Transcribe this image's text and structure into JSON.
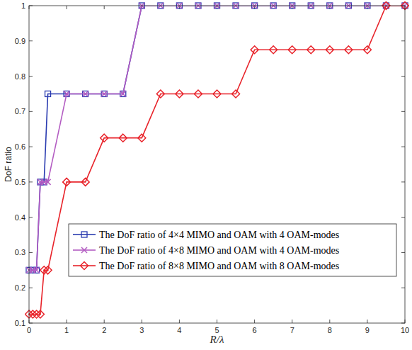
{
  "chart_data": {
    "type": "line",
    "x_label": "R/λ",
    "y_label": "DoF ratio",
    "x": [
      0,
      0.1,
      0.2,
      0.3,
      0.4,
      0.5,
      1,
      1.5,
      2,
      2.5,
      3,
      3.5,
      4,
      4.5,
      5,
      5.5,
      6,
      6.5,
      7,
      7.5,
      8,
      8.5,
      9,
      9.5,
      10
    ],
    "series": [
      {
        "name": "The DoF ratio of 4×4 MIMO and OAM with 4 OAM-modes",
        "color": "#2a3bb0",
        "marker": "square",
        "values": [
          0.25,
          0.25,
          0.25,
          0.5,
          0.5,
          0.75,
          0.75,
          0.75,
          0.75,
          0.75,
          1,
          1,
          1,
          1,
          1,
          1,
          1,
          1,
          1,
          1,
          1,
          1,
          1,
          1,
          1
        ]
      },
      {
        "name": "The DoF ratio of 4×8 MIMO and OAM with 4 OAM-modes",
        "color": "#b35cc2",
        "marker": "x",
        "values": [
          0.25,
          0.25,
          0.25,
          0.5,
          0.5,
          0.5,
          0.75,
          0.75,
          0.75,
          0.75,
          1,
          1,
          1,
          1,
          1,
          1,
          1,
          1,
          1,
          1,
          1,
          1,
          1,
          1,
          1
        ]
      },
      {
        "name": "The DoF ratio of 8×8 MIMO and OAM with 8 OAM-modes",
        "color": "#e8232a",
        "marker": "diamond",
        "values": [
          0.125,
          0.125,
          0.125,
          0.125,
          0.25,
          0.25,
          0.5,
          0.5,
          0.625,
          0.625,
          0.625,
          0.75,
          0.75,
          0.75,
          0.75,
          0.75,
          0.875,
          0.875,
          0.875,
          0.875,
          0.875,
          0.875,
          0.875,
          1,
          1
        ]
      }
    ],
    "xlim": [
      0,
      10
    ],
    "ylim": [
      0.1,
      1
    ],
    "xticks": [
      0,
      1,
      2,
      3,
      4,
      5,
      6,
      7,
      8,
      9,
      10
    ],
    "yticks": [
      0.1,
      0.2,
      0.3,
      0.4,
      0.5,
      0.6,
      0.7,
      0.8,
      0.9,
      1
    ],
    "grid": false,
    "legend": "lower right"
  }
}
